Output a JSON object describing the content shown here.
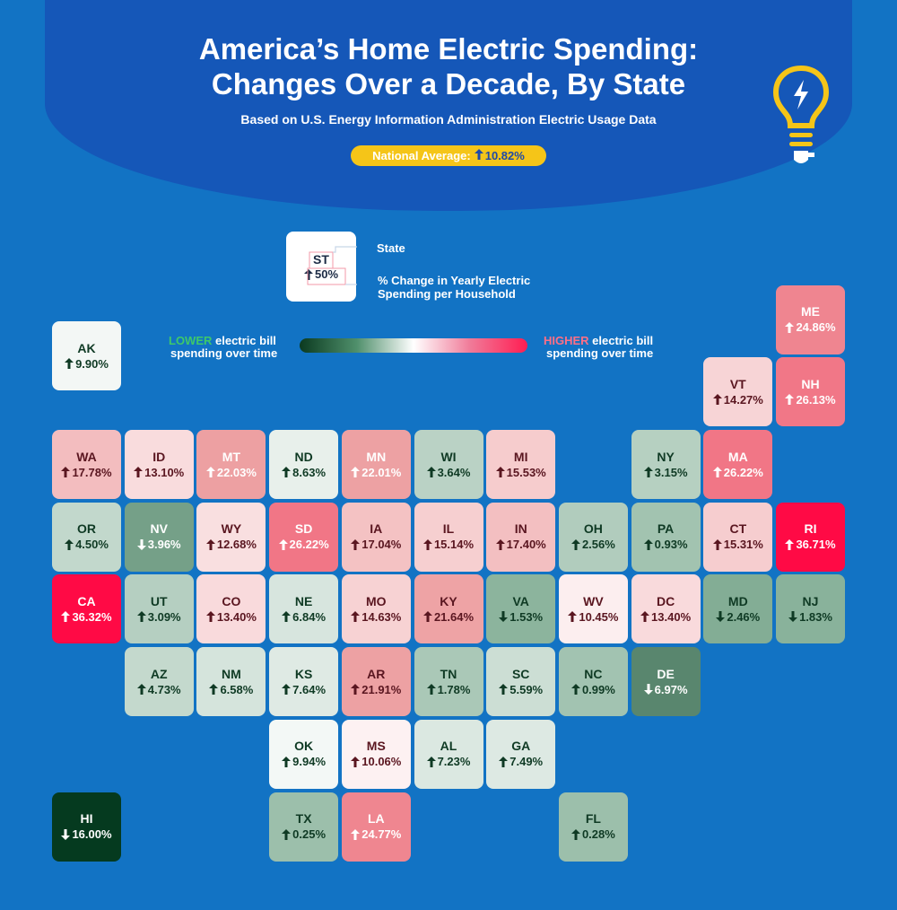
{
  "header": {
    "title_line1": "America’s Home Electric Spending:",
    "title_line2": "Changes Over a Decade, By State",
    "subtitle": "Based on U.S. Energy Information Administration Electric Usage Data",
    "national_average_label": "National Average:",
    "national_average_value": "10.82%"
  },
  "legend": {
    "key_abbr": "ST",
    "key_pct": "50%",
    "state_label": "State",
    "pct_label_line1": "% Change in Yearly Electric",
    "pct_label_line2": "Spending per Household",
    "lower_word": "LOWER",
    "lower_rest": " electric bill",
    "lower_line2": "spending over time",
    "higher_word": "HIGHER",
    "higher_rest": " electric bill",
    "higher_line2": "spending over time",
    "gradient_colors": [
      "#0b3a20",
      "#4f8f6b",
      "#ffffff",
      "#f07a98",
      "#ff1d52"
    ]
  },
  "map_data": {
    "type": "tile-map",
    "value_meaning": "% change in yearly electric spending per household",
    "states": [
      {
        "abbr": "AK",
        "dir": "up",
        "pct": "9.90%",
        "value": 9.9
      },
      {
        "abbr": "ME",
        "dir": "up",
        "pct": "24.86%",
        "value": 24.86
      },
      {
        "abbr": "VT",
        "dir": "up",
        "pct": "14.27%",
        "value": 14.27
      },
      {
        "abbr": "NH",
        "dir": "up",
        "pct": "26.13%",
        "value": 26.13
      },
      {
        "abbr": "WA",
        "dir": "up",
        "pct": "17.78%",
        "value": 17.78
      },
      {
        "abbr": "ID",
        "dir": "up",
        "pct": "13.10%",
        "value": 13.1
      },
      {
        "abbr": "MT",
        "dir": "up",
        "pct": "22.03%",
        "value": 22.03
      },
      {
        "abbr": "ND",
        "dir": "up",
        "pct": "8.63%",
        "value": 8.63
      },
      {
        "abbr": "MN",
        "dir": "up",
        "pct": "22.01%",
        "value": 22.01
      },
      {
        "abbr": "WI",
        "dir": "up",
        "pct": "3.64%",
        "value": 3.64
      },
      {
        "abbr": "MI",
        "dir": "up",
        "pct": "15.53%",
        "value": 15.53
      },
      {
        "abbr": "NY",
        "dir": "up",
        "pct": "3.15%",
        "value": 3.15
      },
      {
        "abbr": "MA",
        "dir": "up",
        "pct": "26.22%",
        "value": 26.22
      },
      {
        "abbr": "OR",
        "dir": "up",
        "pct": "4.50%",
        "value": 4.5
      },
      {
        "abbr": "NV",
        "dir": "down",
        "pct": "3.96%",
        "value": -3.96
      },
      {
        "abbr": "WY",
        "dir": "up",
        "pct": "12.68%",
        "value": 12.68
      },
      {
        "abbr": "SD",
        "dir": "up",
        "pct": "26.22%",
        "value": 26.22
      },
      {
        "abbr": "IA",
        "dir": "up",
        "pct": "17.04%",
        "value": 17.04
      },
      {
        "abbr": "IL",
        "dir": "up",
        "pct": "15.14%",
        "value": 15.14
      },
      {
        "abbr": "IN",
        "dir": "up",
        "pct": "17.40%",
        "value": 17.4
      },
      {
        "abbr": "OH",
        "dir": "up",
        "pct": "2.56%",
        "value": 2.56
      },
      {
        "abbr": "PA",
        "dir": "up",
        "pct": "0.93%",
        "value": 0.93
      },
      {
        "abbr": "CT",
        "dir": "up",
        "pct": "15.31%",
        "value": 15.31
      },
      {
        "abbr": "RI",
        "dir": "up",
        "pct": "36.71%",
        "value": 36.71
      },
      {
        "abbr": "CA",
        "dir": "up",
        "pct": "36.32%",
        "value": 36.32
      },
      {
        "abbr": "UT",
        "dir": "up",
        "pct": "3.09%",
        "value": 3.09
      },
      {
        "abbr": "CO",
        "dir": "up",
        "pct": "13.40%",
        "value": 13.4
      },
      {
        "abbr": "NE",
        "dir": "up",
        "pct": "6.84%",
        "value": 6.84
      },
      {
        "abbr": "MO",
        "dir": "up",
        "pct": "14.63%",
        "value": 14.63
      },
      {
        "abbr": "KY",
        "dir": "up",
        "pct": "21.64%",
        "value": 21.64
      },
      {
        "abbr": "VA",
        "dir": "down",
        "pct": "1.53%",
        "value": -1.53
      },
      {
        "abbr": "WV",
        "dir": "up",
        "pct": "10.45%",
        "value": 10.45
      },
      {
        "abbr": "DC",
        "dir": "up",
        "pct": "13.40%",
        "value": 13.4
      },
      {
        "abbr": "MD",
        "dir": "down",
        "pct": "2.46%",
        "value": -2.46
      },
      {
        "abbr": "NJ",
        "dir": "down",
        "pct": "1.83%",
        "value": -1.83
      },
      {
        "abbr": "AZ",
        "dir": "up",
        "pct": "4.73%",
        "value": 4.73
      },
      {
        "abbr": "NM",
        "dir": "up",
        "pct": "6.58%",
        "value": 6.58
      },
      {
        "abbr": "KS",
        "dir": "up",
        "pct": "7.64%",
        "value": 7.64
      },
      {
        "abbr": "AR",
        "dir": "up",
        "pct": "21.91%",
        "value": 21.91
      },
      {
        "abbr": "TN",
        "dir": "up",
        "pct": "1.78%",
        "value": 1.78
      },
      {
        "abbr": "SC",
        "dir": "up",
        "pct": "5.59%",
        "value": 5.59
      },
      {
        "abbr": "NC",
        "dir": "up",
        "pct": "0.99%",
        "value": 0.99
      },
      {
        "abbr": "DE",
        "dir": "down",
        "pct": "6.97%",
        "value": -6.97
      },
      {
        "abbr": "OK",
        "dir": "up",
        "pct": "9.94%",
        "value": 9.94
      },
      {
        "abbr": "MS",
        "dir": "up",
        "pct": "10.06%",
        "value": 10.06
      },
      {
        "abbr": "AL",
        "dir": "up",
        "pct": "7.23%",
        "value": 7.23
      },
      {
        "abbr": "GA",
        "dir": "up",
        "pct": "7.49%",
        "value": 7.49
      },
      {
        "abbr": "HI",
        "dir": "down",
        "pct": "16.00%",
        "value": -16.0
      },
      {
        "abbr": "TX",
        "dir": "up",
        "pct": "0.25%",
        "value": 0.25
      },
      {
        "abbr": "LA",
        "dir": "up",
        "pct": "24.77%",
        "value": 24.77
      },
      {
        "abbr": "FL",
        "dir": "up",
        "pct": "0.28%",
        "value": 0.28
      }
    ]
  }
}
